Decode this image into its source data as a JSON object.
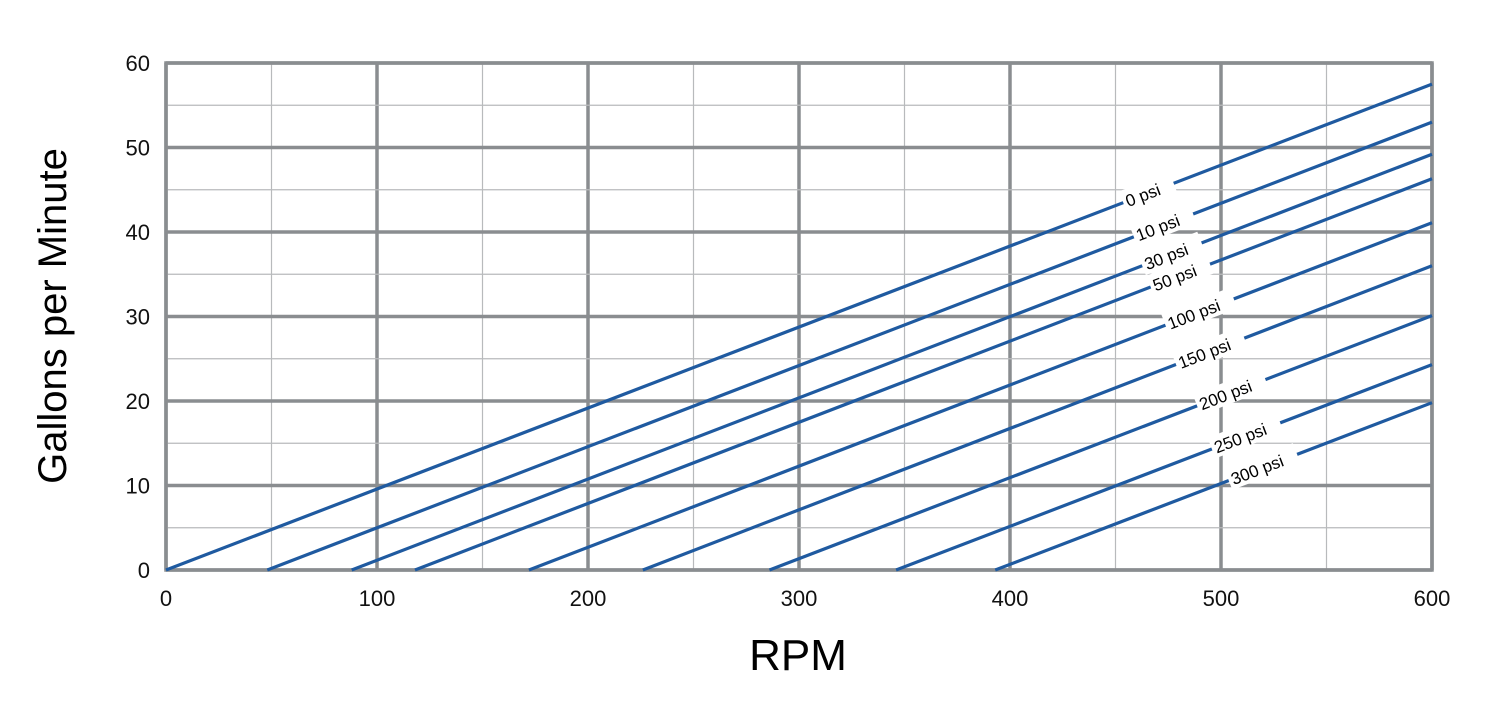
{
  "chart_data": {
    "type": "line",
    "title": "",
    "xlabel": "RPM",
    "ylabel": "Gallons per Minute",
    "xlim": [
      0,
      600
    ],
    "ylim": [
      0,
      60
    ],
    "x_ticks": [
      0,
      100,
      200,
      300,
      400,
      500,
      600
    ],
    "y_ticks": [
      0,
      10,
      20,
      30,
      40,
      50,
      60
    ],
    "grid": true,
    "line_color": "#1f5aa0",
    "grid_major_color": "#8a8d90",
    "grid_minor_color": "#b8babc",
    "series": [
      {
        "name": "0 psi",
        "x": [
          0,
          600
        ],
        "y": [
          0,
          57.5
        ]
      },
      {
        "name": "10 psi",
        "x": [
          48,
          600
        ],
        "y": [
          0,
          53.0
        ]
      },
      {
        "name": "30 psi",
        "x": [
          88,
          600
        ],
        "y": [
          0,
          49.2
        ]
      },
      {
        "name": "50 psi",
        "x": [
          118,
          600
        ],
        "y": [
          0,
          46.3
        ]
      },
      {
        "name": "100 psi",
        "x": [
          172,
          600
        ],
        "y": [
          0,
          41.1
        ]
      },
      {
        "name": "150 psi",
        "x": [
          226,
          600
        ],
        "y": [
          0,
          36.0
        ]
      },
      {
        "name": "200 psi",
        "x": [
          286,
          600
        ],
        "y": [
          0,
          30.1
        ]
      },
      {
        "name": "250 psi",
        "x": [
          346,
          600
        ],
        "y": [
          0,
          24.3
        ]
      },
      {
        "name": "300 psi",
        "x": [
          393,
          600
        ],
        "y": [
          0,
          19.8
        ]
      }
    ],
    "annotation_rpm": [
      455,
      460,
      464,
      468,
      475,
      480,
      490,
      497,
      505
    ]
  }
}
